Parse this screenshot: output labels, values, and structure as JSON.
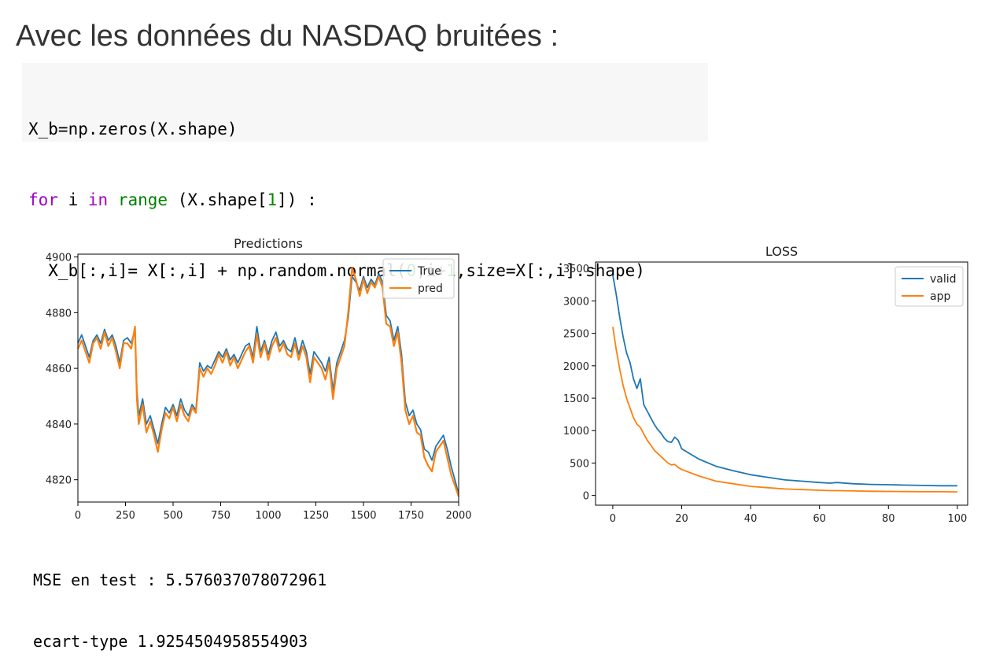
{
  "heading": "Avec les données du NASDAQ bruitées :",
  "code": {
    "line1": "X_b=np.zeros(X.shape)",
    "line2": [
      {
        "t": "for",
        "c": "kw"
      },
      {
        "t": " i ",
        "c": ""
      },
      {
        "t": "in",
        "c": "kw"
      },
      {
        "t": " ",
        "c": ""
      },
      {
        "t": "range",
        "c": "bi"
      },
      {
        "t": " (X.shape[",
        "c": ""
      },
      {
        "t": "1",
        "c": "num"
      },
      {
        "t": "]) :",
        "c": ""
      }
    ],
    "line3": [
      {
        "t": "  X_b[:,i]= X[:,i] + np.random.normal(",
        "c": ""
      },
      {
        "t": "0",
        "c": "num"
      },
      {
        "t": ",i+",
        "c": ""
      },
      {
        "t": "1",
        "c": "num"
      },
      {
        "t": ",size=X[:,i].shape)",
        "c": ""
      }
    ]
  },
  "stats": {
    "mse": "MSE en test : 5.576037078072961",
    "std": "ecart-type 1.9254504958554903"
  },
  "chart_data": [
    {
      "type": "line",
      "title": "Predictions",
      "xlim": [
        0,
        2000
      ],
      "ylim": [
        4812,
        4901
      ],
      "xticks": [
        0,
        250,
        500,
        750,
        1000,
        1250,
        1500,
        1750,
        2000
      ],
      "yticks": [
        4820,
        4840,
        4860,
        4880,
        4900
      ],
      "grid": false,
      "legend": "top-right",
      "colors": {
        "True": "#1f77b4",
        "pred": "#ff7f0e"
      },
      "series": [
        {
          "name": "True",
          "x": [
            0,
            20,
            40,
            60,
            80,
            100,
            120,
            140,
            160,
            180,
            200,
            220,
            240,
            260,
            280,
            300,
            310,
            320,
            340,
            360,
            380,
            400,
            420,
            440,
            460,
            480,
            500,
            520,
            540,
            560,
            580,
            600,
            620,
            640,
            660,
            680,
            700,
            720,
            740,
            760,
            780,
            800,
            820,
            840,
            860,
            880,
            900,
            920,
            940,
            960,
            980,
            1000,
            1020,
            1040,
            1060,
            1080,
            1100,
            1120,
            1140,
            1160,
            1180,
            1200,
            1220,
            1240,
            1260,
            1280,
            1300,
            1320,
            1340,
            1360,
            1380,
            1400,
            1420,
            1440,
            1460,
            1480,
            1500,
            1520,
            1540,
            1560,
            1580,
            1600,
            1620,
            1640,
            1660,
            1680,
            1700,
            1720,
            1740,
            1760,
            1780,
            1800,
            1820,
            1840,
            1860,
            1880,
            1900,
            1920,
            1940,
            1960,
            1980,
            2000
          ],
          "y": [
            4869,
            4872,
            4868,
            4864,
            4870,
            4872,
            4869,
            4874,
            4870,
            4872,
            4868,
            4862,
            4870,
            4871,
            4869,
            4874,
            4852,
            4843,
            4849,
            4840,
            4843,
            4838,
            4833,
            4840,
            4846,
            4844,
            4847,
            4843,
            4849,
            4845,
            4843,
            4847,
            4845,
            4862,
            4859,
            4861,
            4860,
            4863,
            4866,
            4864,
            4867,
            4863,
            4865,
            4862,
            4865,
            4868,
            4869,
            4864,
            4875,
            4866,
            4870,
            4865,
            4870,
            4873,
            4868,
            4870,
            4867,
            4866,
            4871,
            4865,
            4870,
            4866,
            4858,
            4866,
            4864,
            4862,
            4859,
            4864,
            4852,
            4862,
            4866,
            4870,
            4878,
            4893,
            4891,
            4888,
            4893,
            4889,
            4892,
            4890,
            4894,
            4891,
            4879,
            4877,
            4870,
            4875,
            4865,
            4848,
            4843,
            4845,
            4840,
            4838,
            4831,
            4830,
            4827,
            4832,
            4834,
            4836,
            4831,
            4825,
            4820,
            4815
          ]
        },
        {
          "name": "pred",
          "x": [
            0,
            20,
            40,
            60,
            80,
            100,
            120,
            140,
            160,
            180,
            200,
            220,
            240,
            260,
            280,
            300,
            310,
            320,
            340,
            360,
            380,
            400,
            420,
            440,
            460,
            480,
            500,
            520,
            540,
            560,
            580,
            600,
            620,
            640,
            660,
            680,
            700,
            720,
            740,
            760,
            780,
            800,
            820,
            840,
            860,
            880,
            900,
            920,
            940,
            960,
            980,
            1000,
            1020,
            1040,
            1060,
            1080,
            1100,
            1120,
            1140,
            1160,
            1180,
            1200,
            1220,
            1240,
            1260,
            1280,
            1300,
            1320,
            1340,
            1360,
            1380,
            1400,
            1420,
            1440,
            1460,
            1480,
            1500,
            1520,
            1540,
            1560,
            1580,
            1600,
            1620,
            1640,
            1660,
            1680,
            1700,
            1720,
            1740,
            1760,
            1780,
            1800,
            1820,
            1840,
            1860,
            1880,
            1900,
            1920,
            1940,
            1960,
            1980,
            2000
          ],
          "y": [
            4867,
            4870,
            4866,
            4862,
            4869,
            4871,
            4867,
            4873,
            4868,
            4871,
            4866,
            4860,
            4869,
            4869,
            4867,
            4875,
            4849,
            4840,
            4847,
            4837,
            4841,
            4836,
            4830,
            4838,
            4844,
            4842,
            4846,
            4841,
            4847,
            4843,
            4841,
            4846,
            4844,
            4860,
            4857,
            4860,
            4858,
            4861,
            4865,
            4862,
            4866,
            4861,
            4864,
            4860,
            4863,
            4866,
            4868,
            4862,
            4872,
            4864,
            4869,
            4863,
            4868,
            4871,
            4866,
            4869,
            4865,
            4864,
            4869,
            4863,
            4868,
            4864,
            4855,
            4864,
            4862,
            4860,
            4856,
            4862,
            4849,
            4860,
            4864,
            4868,
            4880,
            4896,
            4892,
            4886,
            4892,
            4887,
            4891,
            4889,
            4893,
            4889,
            4876,
            4875,
            4868,
            4873,
            4862,
            4845,
            4840,
            4843,
            4837,
            4836,
            4828,
            4825,
            4823,
            4830,
            4832,
            4834,
            4828,
            4822,
            4818,
            4814
          ]
        }
      ]
    },
    {
      "type": "line",
      "title": "LOSS",
      "xlim": [
        -5,
        103
      ],
      "ylim": [
        -150,
        3600
      ],
      "xticks": [
        0,
        20,
        40,
        60,
        80,
        100
      ],
      "yticks": [
        0,
        500,
        1000,
        1500,
        2000,
        2500,
        3000,
        3500
      ],
      "grid": false,
      "legend": "top-right",
      "colors": {
        "valid": "#1f77b4",
        "app": "#ff7f0e"
      },
      "series": [
        {
          "name": "valid",
          "x": [
            0,
            1,
            2,
            3,
            4,
            5,
            6,
            7,
            8,
            9,
            10,
            11,
            12,
            13,
            14,
            15,
            16,
            17,
            18,
            19,
            20,
            25,
            30,
            35,
            40,
            45,
            50,
            55,
            60,
            63,
            65,
            70,
            75,
            80,
            85,
            90,
            95,
            100
          ],
          "y": [
            3400,
            3100,
            2750,
            2450,
            2200,
            2050,
            1800,
            1650,
            1800,
            1400,
            1300,
            1200,
            1100,
            1020,
            960,
            880,
            830,
            820,
            900,
            850,
            720,
            560,
            450,
            380,
            320,
            280,
            240,
            220,
            200,
            190,
            200,
            180,
            170,
            165,
            160,
            155,
            150,
            150
          ]
        },
        {
          "name": "app",
          "x": [
            0,
            1,
            2,
            3,
            4,
            5,
            6,
            7,
            8,
            9,
            10,
            11,
            12,
            13,
            14,
            15,
            16,
            17,
            18,
            19,
            20,
            25,
            30,
            35,
            40,
            45,
            50,
            55,
            60,
            63,
            65,
            70,
            75,
            80,
            85,
            90,
            95,
            100
          ],
          "y": [
            2600,
            2250,
            1950,
            1700,
            1500,
            1350,
            1200,
            1100,
            1050,
            950,
            850,
            780,
            700,
            650,
            600,
            550,
            500,
            470,
            480,
            430,
            400,
            300,
            220,
            180,
            140,
            120,
            100,
            90,
            80,
            75,
            75,
            70,
            65,
            62,
            60,
            58,
            57,
            55
          ]
        }
      ]
    }
  ]
}
